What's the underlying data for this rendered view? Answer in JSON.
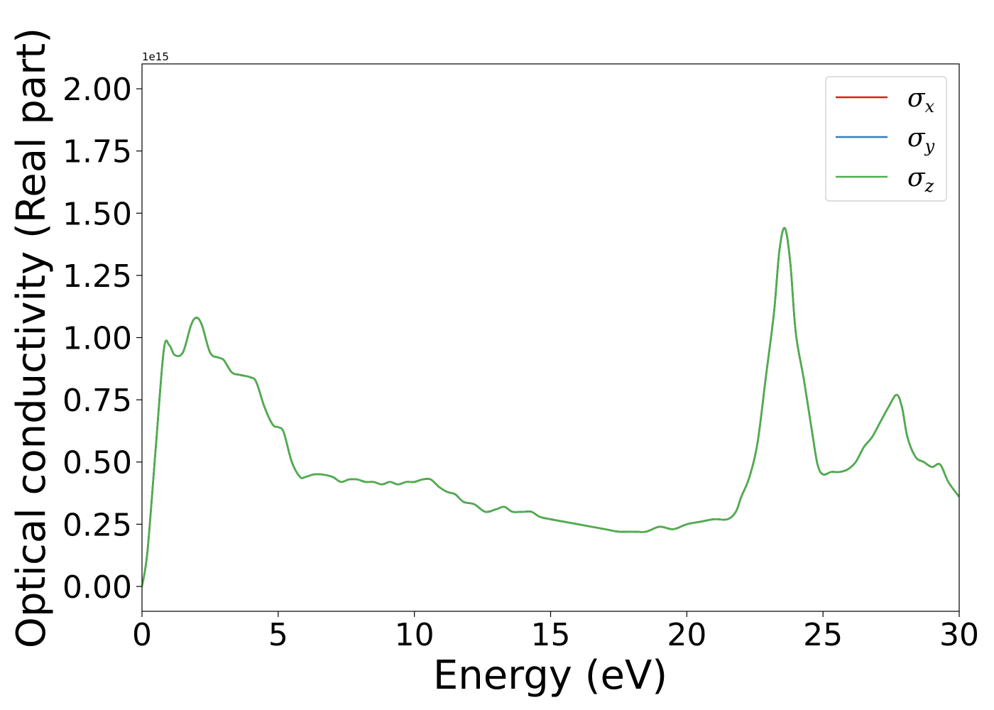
{
  "colors": {
    "sigma_x": "#e41a1c",
    "sigma_y": "#377eb8",
    "sigma_z": "#4daf4a",
    "axes": "#000000",
    "background": "#ffffff"
  },
  "chart_data": {
    "type": "line",
    "title": "",
    "xlabel": "Energy (eV)",
    "ylabel": "Optical conductivity (Real part)",
    "y_offset_label": "1e15",
    "xlim": [
      0,
      30
    ],
    "ylim": [
      -0.1,
      2.1
    ],
    "y_multiplier": 1000000000000000.0,
    "x_ticks": [
      0,
      5,
      10,
      15,
      20,
      25,
      30
    ],
    "x_tick_labels": [
      "0",
      "5",
      "10",
      "15",
      "20",
      "25",
      "30"
    ],
    "y_ticks": [
      0.0,
      0.25,
      0.5,
      0.75,
      1.0,
      1.25,
      1.5,
      1.75,
      2.0
    ],
    "y_tick_labels": [
      "0.00",
      "0.25",
      "0.50",
      "0.75",
      "1.00",
      "1.25",
      "1.50",
      "1.75",
      "2.00"
    ],
    "grid": false,
    "legend_position": "top-right",
    "x": [
      0,
      0.2,
      0.5,
      0.8,
      1.0,
      1.2,
      1.5,
      1.8,
      2.0,
      2.2,
      2.5,
      2.8,
      3.0,
      3.3,
      3.6,
      4.0,
      4.2,
      4.5,
      4.8,
      5.0,
      5.2,
      5.5,
      5.8,
      6.0,
      6.3,
      6.6,
      7.0,
      7.3,
      7.6,
      7.9,
      8.2,
      8.5,
      8.8,
      9.1,
      9.4,
      9.7,
      10.0,
      10.3,
      10.6,
      10.9,
      11.2,
      11.5,
      11.8,
      12.2,
      12.6,
      13.0,
      13.3,
      13.6,
      14.0,
      14.3,
      14.6,
      15.0,
      15.5,
      16.0,
      16.5,
      17.0,
      17.5,
      18.0,
      18.5,
      19.0,
      19.5,
      20.0,
      20.5,
      21.0,
      21.5,
      21.8,
      22.0,
      22.3,
      22.6,
      22.9,
      23.2,
      23.4,
      23.6,
      23.8,
      24.0,
      24.3,
      24.6,
      24.8,
      25.0,
      25.3,
      25.6,
      25.9,
      26.2,
      26.5,
      26.8,
      27.1,
      27.4,
      27.7,
      27.9,
      28.1,
      28.4,
      28.7,
      29.0,
      29.3,
      29.6,
      30.0
    ],
    "series": [
      {
        "name": "σ_x",
        "values": [
          0.0,
          0.14,
          0.55,
          0.95,
          0.97,
          0.93,
          0.94,
          1.05,
          1.08,
          1.05,
          0.94,
          0.92,
          0.91,
          0.86,
          0.85,
          0.84,
          0.82,
          0.72,
          0.65,
          0.64,
          0.62,
          0.5,
          0.44,
          0.44,
          0.45,
          0.45,
          0.44,
          0.42,
          0.43,
          0.43,
          0.42,
          0.42,
          0.41,
          0.42,
          0.41,
          0.42,
          0.42,
          0.43,
          0.43,
          0.4,
          0.38,
          0.37,
          0.34,
          0.33,
          0.3,
          0.31,
          0.32,
          0.3,
          0.3,
          0.3,
          0.28,
          0.27,
          0.26,
          0.25,
          0.24,
          0.23,
          0.22,
          0.22,
          0.22,
          0.24,
          0.23,
          0.25,
          0.26,
          0.27,
          0.27,
          0.3,
          0.36,
          0.44,
          0.58,
          0.84,
          1.1,
          1.35,
          1.44,
          1.3,
          1.02,
          0.83,
          0.62,
          0.49,
          0.45,
          0.46,
          0.46,
          0.47,
          0.5,
          0.56,
          0.6,
          0.66,
          0.72,
          0.77,
          0.72,
          0.6,
          0.52,
          0.5,
          0.48,
          0.49,
          0.42,
          0.36
        ]
      },
      {
        "name": "σ_y",
        "values": [
          0.0,
          0.14,
          0.55,
          0.95,
          0.97,
          0.93,
          0.94,
          1.05,
          1.08,
          1.05,
          0.94,
          0.92,
          0.91,
          0.86,
          0.85,
          0.84,
          0.82,
          0.72,
          0.65,
          0.64,
          0.62,
          0.5,
          0.44,
          0.44,
          0.45,
          0.45,
          0.44,
          0.42,
          0.43,
          0.43,
          0.42,
          0.42,
          0.41,
          0.42,
          0.41,
          0.42,
          0.42,
          0.43,
          0.43,
          0.4,
          0.38,
          0.37,
          0.34,
          0.33,
          0.3,
          0.31,
          0.32,
          0.3,
          0.3,
          0.3,
          0.28,
          0.27,
          0.26,
          0.25,
          0.24,
          0.23,
          0.22,
          0.22,
          0.22,
          0.24,
          0.23,
          0.25,
          0.26,
          0.27,
          0.27,
          0.3,
          0.36,
          0.44,
          0.58,
          0.84,
          1.1,
          1.35,
          1.44,
          1.3,
          1.02,
          0.83,
          0.62,
          0.49,
          0.45,
          0.46,
          0.46,
          0.47,
          0.5,
          0.56,
          0.6,
          0.66,
          0.72,
          0.77,
          0.72,
          0.6,
          0.52,
          0.5,
          0.48,
          0.49,
          0.42,
          0.36
        ]
      },
      {
        "name": "σ_z",
        "values": [
          0.0,
          0.14,
          0.55,
          0.95,
          0.97,
          0.93,
          0.94,
          1.05,
          1.08,
          1.05,
          0.94,
          0.92,
          0.91,
          0.86,
          0.85,
          0.84,
          0.82,
          0.72,
          0.65,
          0.64,
          0.62,
          0.5,
          0.44,
          0.44,
          0.45,
          0.45,
          0.44,
          0.42,
          0.43,
          0.43,
          0.42,
          0.42,
          0.41,
          0.42,
          0.41,
          0.42,
          0.42,
          0.43,
          0.43,
          0.4,
          0.38,
          0.37,
          0.34,
          0.33,
          0.3,
          0.31,
          0.32,
          0.3,
          0.3,
          0.3,
          0.28,
          0.27,
          0.26,
          0.25,
          0.24,
          0.23,
          0.22,
          0.22,
          0.22,
          0.24,
          0.23,
          0.25,
          0.26,
          0.27,
          0.27,
          0.3,
          0.36,
          0.44,
          0.58,
          0.84,
          1.1,
          1.35,
          1.44,
          1.3,
          1.02,
          0.83,
          0.62,
          0.49,
          0.45,
          0.46,
          0.46,
          0.47,
          0.5,
          0.56,
          0.6,
          0.66,
          0.72,
          0.77,
          0.72,
          0.6,
          0.52,
          0.5,
          0.48,
          0.49,
          0.42,
          0.36
        ]
      }
    ],
    "legend": [
      {
        "symbol": "σ",
        "subscript": "x",
        "series": "σ_x"
      },
      {
        "symbol": "σ",
        "subscript": "y",
        "series": "σ_y"
      },
      {
        "symbol": "σ",
        "subscript": "z",
        "series": "σ_z"
      }
    ]
  }
}
